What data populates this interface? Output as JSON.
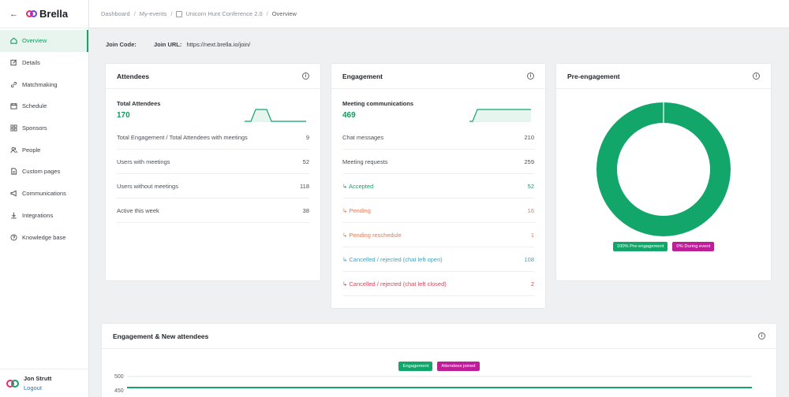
{
  "brand": {
    "name": "Brella",
    "back_icon": "back-arrow-icon"
  },
  "sidebar": {
    "items": [
      {
        "label": "Overview",
        "icon": "home-icon",
        "active": true
      },
      {
        "label": "Details",
        "icon": "edit-icon"
      },
      {
        "label": "Matchmaking",
        "icon": "link-icon"
      },
      {
        "label": "Schedule",
        "icon": "calendar-icon"
      },
      {
        "label": "Sponsors",
        "icon": "grid-icon"
      },
      {
        "label": "People",
        "icon": "people-icon"
      },
      {
        "label": "Custom pages",
        "icon": "page-icon"
      },
      {
        "label": "Communications",
        "icon": "megaphone-icon"
      },
      {
        "label": "Integrations",
        "icon": "download-icon"
      },
      {
        "label": "Knowledge base",
        "icon": "help-icon"
      }
    ],
    "user": {
      "name": "Jon Strutt",
      "logout": "Logout"
    }
  },
  "breadcrumb": {
    "dashboard": "Dashboard",
    "events": "My-events",
    "event": "Unicorn Hunt Conference 2.0",
    "current": "Overview"
  },
  "join": {
    "code_label": "Join Code:",
    "url_label": "Join URL:",
    "url": "https://next.brella.io/join/"
  },
  "attendees": {
    "title": "Attendees",
    "total_label": "Total Attendees",
    "total_value": "170",
    "rows": [
      {
        "label": "Total Engagement / Total Attendees with meetings",
        "value": "9"
      },
      {
        "label": "Users with meetings",
        "value": "52"
      },
      {
        "label": "Users without meetings",
        "value": "118"
      },
      {
        "label": "Active this week",
        "value": "38"
      }
    ]
  },
  "engagement": {
    "title": "Engagement",
    "meeting_label": "Meeting communications",
    "meeting_value": "469",
    "rows": [
      {
        "label": "Chat messages",
        "value": "210",
        "tone": ""
      },
      {
        "label": "Meeting requests",
        "value": "259",
        "tone": ""
      },
      {
        "label": "↳ Accepted",
        "value": "52",
        "tone": "green"
      },
      {
        "label": "↳ Pending",
        "value": "16",
        "tone": "orange"
      },
      {
        "label": "↳ Pending reschedule",
        "value": "1",
        "tone": "orange"
      },
      {
        "label": "↳ Cancelled / rejected (chat left open)",
        "value": "108",
        "tone": "teal"
      },
      {
        "label": "↳ Cancelled / rejected (chat left closed)",
        "value": "2",
        "tone": "red"
      }
    ]
  },
  "pre_engagement": {
    "title": "Pre-engagement",
    "legend": [
      "100% Pre-engagement",
      "0% During event"
    ],
    "colors": {
      "pre": "#12a66a",
      "during": "#bd1f99"
    },
    "pre_fraction": 1.0
  },
  "engagement_chart": {
    "title": "Engagement & New attendees",
    "legend": [
      "Engagement",
      "Attendees joined"
    ],
    "y_ticks": [
      "500",
      "450"
    ]
  }
}
